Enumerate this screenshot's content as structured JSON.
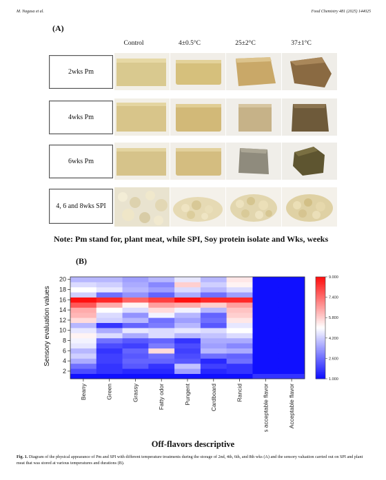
{
  "header": {
    "left": "M. Nagasa et al.",
    "right": "Food Chemistry 481 (2025) 144025"
  },
  "panel_a": {
    "label": "(A)",
    "columns": [
      "Control",
      "4±0.5°C",
      "25±2°C",
      "37±1°C"
    ],
    "rows": [
      "2wks Pm",
      "4wks Pm",
      "6wks Pm",
      "4, 6 and 8wks SPI"
    ],
    "note": "Note: Pm stand for, plant meat, while SPI, Soy protein isolate and Wks, weeks"
  },
  "panel_b": {
    "label": "(B)",
    "x_title": "Off-flavors descriptive"
  },
  "chart_data": {
    "type": "heatmap",
    "xlabel": "",
    "ylabel": "Sensory evaluation values",
    "categories": [
      "Beany",
      "Green",
      "Grassy",
      "Fatty odor",
      "Pungent",
      "Cardboard",
      "Rancid",
      "Less acceptable flavor",
      "Acceptable flavor"
    ],
    "y_ticks": [
      2,
      4,
      6,
      8,
      10,
      12,
      14,
      16,
      18,
      20
    ],
    "ylim": [
      1,
      20
    ],
    "colorbar_ticks": [
      "9.000",
      "7.400",
      "5.800",
      "4.200",
      "2.600",
      "1.000"
    ],
    "color_range": [
      1,
      9
    ],
    "colors": {
      "low": "#1010ff",
      "mid": "#ffffff",
      "high": "#ff1010"
    },
    "rows_bottom_to_top": [
      [
        1.0,
        1.0,
        1.0,
        1.0,
        1.0,
        1.0,
        1.0,
        1.6,
        1.6
      ],
      [
        2.0,
        1.6,
        1.4,
        1.4,
        3.4,
        1.4,
        1.6,
        1.0,
        1.0
      ],
      [
        2.6,
        1.6,
        2.2,
        1.6,
        4.0,
        1.8,
        1.6,
        1.0,
        1.0
      ],
      [
        3.6,
        1.8,
        2.4,
        2.4,
        2.2,
        1.4,
        2.6,
        1.0,
        1.0
      ],
      [
        4.2,
        1.8,
        2.2,
        2.6,
        2.0,
        2.6,
        2.4,
        1.0,
        1.0
      ],
      [
        3.8,
        1.6,
        2.4,
        5.6,
        1.8,
        3.8,
        3.6,
        1.0,
        1.0
      ],
      [
        4.6,
        2.0,
        1.8,
        2.8,
        2.0,
        3.4,
        3.0,
        1.0,
        1.0
      ],
      [
        4.8,
        2.6,
        2.2,
        2.4,
        1.6,
        3.6,
        3.6,
        1.0,
        1.0
      ],
      [
        5.2,
        4.4,
        3.6,
        4.4,
        3.8,
        4.0,
        4.4,
        1.0,
        1.0
      ],
      [
        4.6,
        3.6,
        4.6,
        4.4,
        4.6,
        4.4,
        5.0,
        1.0,
        1.0
      ],
      [
        3.8,
        1.6,
        2.4,
        2.8,
        3.8,
        2.2,
        4.6,
        1.0,
        1.0
      ],
      [
        5.6,
        4.2,
        3.8,
        2.6,
        3.4,
        2.6,
        5.4,
        1.0,
        1.0
      ],
      [
        6.2,
        4.4,
        3.2,
        4.8,
        3.8,
        2.4,
        5.8,
        1.0,
        1.0
      ],
      [
        6.4,
        5.0,
        4.4,
        5.6,
        4.8,
        3.8,
        6.0,
        1.0,
        1.0
      ],
      [
        7.8,
        6.4,
        5.2,
        6.6,
        6.4,
        5.8,
        6.6,
        1.0,
        1.0
      ],
      [
        9.0,
        8.6,
        7.6,
        8.2,
        9.0,
        8.6,
        8.6,
        1.0,
        1.0
      ],
      [
        4.2,
        2.6,
        3.2,
        2.4,
        3.6,
        2.6,
        3.4,
        1.0,
        1.0
      ],
      [
        5.0,
        4.6,
        3.8,
        3.4,
        4.4,
        3.8,
        4.4,
        1.0,
        1.0
      ],
      [
        4.4,
        4.2,
        3.6,
        3.0,
        5.8,
        4.2,
        5.2,
        1.0,
        1.0
      ],
      [
        3.8,
        3.8,
        3.4,
        3.8,
        4.6,
        3.8,
        5.4,
        1.0,
        1.0
      ]
    ]
  },
  "caption": {
    "label": "Fig. 1.",
    "text": "Diagram of the physical appearance of Pm and SPI with different temperature treatments during the storage of 2nd, 4th, 6th, and 8th wks (A) and the sensory valuation carried out on SPI and plant meat that was stored at various temperatures and durations (B)."
  }
}
